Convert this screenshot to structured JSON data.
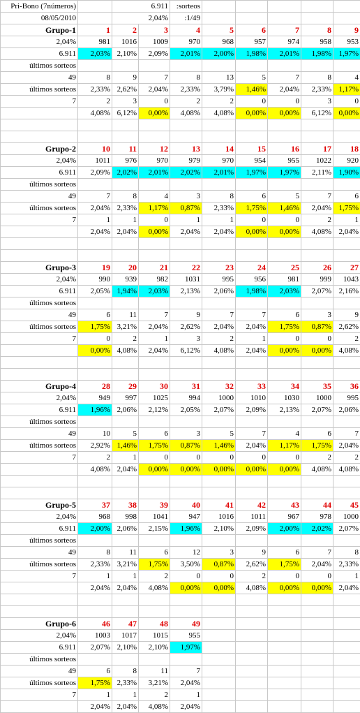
{
  "header": {
    "title": "Pri-Bono (7números)",
    "date": "08/05/2010",
    "sorteos_value": "6.911",
    "sorteos_label": ":sorteos",
    "prob_value": "2,04%",
    "prob_label": ":1/49"
  },
  "colors": {
    "cyan": "#00ffff",
    "yellow": "#ffff00",
    "number_red": "#e00000"
  },
  "groups": [
    {
      "name": "Grupo-1",
      "prob": "2,04%",
      "sorteos": "6.911",
      "count49": "49",
      "count7": "7",
      "ultimos1": "últimos sorteos",
      "ultimos2": "últimos sorteos",
      "numbers": [
        "1",
        "2",
        "3",
        "4",
        "5",
        "6",
        "7",
        "8",
        "9"
      ],
      "freq": [
        "981",
        "1016",
        "1009",
        "970",
        "968",
        "957",
        "974",
        "958",
        "953"
      ],
      "pct": [
        "2,03%",
        "2,10%",
        "2,09%",
        "2,01%",
        "2,00%",
        "1,98%",
        "2,01%",
        "1,98%",
        "1,97%"
      ],
      "pct_hl": [
        "cyan",
        "",
        "",
        "cyan",
        "cyan",
        "cyan",
        "cyan",
        "cyan",
        "cyan"
      ],
      "last49": [
        "8",
        "9",
        "7",
        "8",
        "13",
        "5",
        "7",
        "8",
        "4"
      ],
      "last49pct": [
        "2,33%",
        "2,62%",
        "2,04%",
        "2,33%",
        "3,79%",
        "1,46%",
        "2,04%",
        "2,33%",
        "1,17%"
      ],
      "last49_hl": [
        "",
        "",
        "",
        "",
        "",
        "yellow",
        "",
        "",
        "yellow"
      ],
      "last7": [
        "2",
        "3",
        "0",
        "2",
        "2",
        "0",
        "0",
        "3",
        "0"
      ],
      "last7pct": [
        "4,08%",
        "6,12%",
        "0,00%",
        "4,08%",
        "4,08%",
        "0,00%",
        "0,00%",
        "6,12%",
        "0,00%"
      ],
      "last7_hl": [
        "",
        "",
        "yellow",
        "",
        "",
        "yellow",
        "yellow",
        "",
        "yellow"
      ]
    },
    {
      "name": "Grupo-2",
      "prob": "2,04%",
      "sorteos": "6.911",
      "count49": "49",
      "count7": "7",
      "ultimos1": "últimos sorteos",
      "ultimos2": "últimos sorteos",
      "numbers": [
        "10",
        "11",
        "12",
        "13",
        "14",
        "15",
        "16",
        "17",
        "18"
      ],
      "freq": [
        "1011",
        "976",
        "970",
        "979",
        "970",
        "954",
        "955",
        "1022",
        "920"
      ],
      "pct": [
        "2,09%",
        "2,02%",
        "2,01%",
        "2,02%",
        "2,01%",
        "1,97%",
        "1,97%",
        "2,11%",
        "1,90%"
      ],
      "pct_hl": [
        "",
        "cyan",
        "cyan",
        "cyan",
        "cyan",
        "cyan",
        "cyan",
        "",
        "cyan"
      ],
      "last49": [
        "7",
        "8",
        "4",
        "3",
        "8",
        "6",
        "5",
        "7",
        "6"
      ],
      "last49pct": [
        "2,04%",
        "2,33%",
        "1,17%",
        "0,87%",
        "2,33%",
        "1,75%",
        "1,46%",
        "2,04%",
        "1,75%"
      ],
      "last49_hl": [
        "",
        "",
        "yellow",
        "yellow",
        "",
        "yellow",
        "yellow",
        "",
        "yellow"
      ],
      "last7": [
        "1",
        "1",
        "0",
        "1",
        "1",
        "0",
        "0",
        "2",
        "1"
      ],
      "last7pct": [
        "2,04%",
        "2,04%",
        "0,00%",
        "2,04%",
        "2,04%",
        "0,00%",
        "0,00%",
        "4,08%",
        "2,04%"
      ],
      "last7_hl": [
        "",
        "",
        "yellow",
        "",
        "",
        "yellow",
        "yellow",
        "",
        ""
      ]
    },
    {
      "name": "Grupo-3",
      "prob": "2,04%",
      "sorteos": "6.911",
      "count49": "49",
      "count7": "7",
      "ultimos1": "últimos sorteos",
      "ultimos2": "últimos sorteos",
      "numbers": [
        "19",
        "20",
        "21",
        "22",
        "23",
        "24",
        "25",
        "26",
        "27"
      ],
      "freq": [
        "990",
        "939",
        "982",
        "1031",
        "995",
        "956",
        "981",
        "999",
        "1043"
      ],
      "pct": [
        "2,05%",
        "1,94%",
        "2,03%",
        "2,13%",
        "2,06%",
        "1,98%",
        "2,03%",
        "2,07%",
        "2,16%"
      ],
      "pct_hl": [
        "",
        "cyan",
        "cyan",
        "",
        "",
        "cyan",
        "cyan",
        "",
        ""
      ],
      "last49": [
        "6",
        "11",
        "7",
        "9",
        "7",
        "7",
        "6",
        "3",
        "9"
      ],
      "last49pct": [
        "1,75%",
        "3,21%",
        "2,04%",
        "2,62%",
        "2,04%",
        "2,04%",
        "1,75%",
        "0,87%",
        "2,62%"
      ],
      "last49_hl": [
        "yellow",
        "",
        "",
        "",
        "",
        "",
        "yellow",
        "yellow",
        ""
      ],
      "last7": [
        "0",
        "2",
        "1",
        "3",
        "2",
        "1",
        "0",
        "0",
        "2"
      ],
      "last7pct": [
        "0,00%",
        "4,08%",
        "2,04%",
        "6,12%",
        "4,08%",
        "2,04%",
        "0,00%",
        "0,00%",
        "4,08%"
      ],
      "last7_hl": [
        "yellow",
        "",
        "",
        "",
        "",
        "",
        "yellow",
        "yellow",
        ""
      ]
    },
    {
      "name": "Grupo-4",
      "prob": "2,04%",
      "sorteos": "6.911",
      "count49": "49",
      "count7": "7",
      "ultimos1": "últimos sorteos",
      "ultimos2": "últimos sorteos",
      "numbers": [
        "28",
        "29",
        "30",
        "31",
        "32",
        "33",
        "34",
        "35",
        "36"
      ],
      "freq": [
        "949",
        "997",
        "1025",
        "994",
        "1000",
        "1010",
        "1030",
        "1000",
        "995"
      ],
      "pct": [
        "1,96%",
        "2,06%",
        "2,12%",
        "2,05%",
        "2,07%",
        "2,09%",
        "2,13%",
        "2,07%",
        "2,06%"
      ],
      "pct_hl": [
        "cyan",
        "",
        "",
        "",
        "",
        "",
        "",
        "",
        ""
      ],
      "last49": [
        "10",
        "5",
        "6",
        "3",
        "5",
        "7",
        "4",
        "6",
        "7"
      ],
      "last49pct": [
        "2,92%",
        "1,46%",
        "1,75%",
        "0,87%",
        "1,46%",
        "2,04%",
        "1,17%",
        "1,75%",
        "2,04%"
      ],
      "last49_hl": [
        "",
        "yellow",
        "yellow",
        "yellow",
        "yellow",
        "",
        "yellow",
        "yellow",
        ""
      ],
      "last7": [
        "2",
        "1",
        "0",
        "0",
        "0",
        "0",
        "0",
        "2",
        "2"
      ],
      "last7pct": [
        "4,08%",
        "2,04%",
        "0,00%",
        "0,00%",
        "0,00%",
        "0,00%",
        "0,00%",
        "4,08%",
        "4,08%"
      ],
      "last7_hl": [
        "",
        "",
        "yellow",
        "yellow",
        "yellow",
        "yellow",
        "yellow",
        "",
        ""
      ]
    },
    {
      "name": "Grupo-5",
      "prob": "2,04%",
      "sorteos": "6.911",
      "count49": "49",
      "count7": "7",
      "ultimos1": "últimos sorteos",
      "ultimos2": "últimos sorteos",
      "numbers": [
        "37",
        "38",
        "39",
        "40",
        "41",
        "42",
        "43",
        "44",
        "45"
      ],
      "freq": [
        "968",
        "998",
        "1041",
        "947",
        "1016",
        "1011",
        "967",
        "978",
        "1000"
      ],
      "pct": [
        "2,00%",
        "2,06%",
        "2,15%",
        "1,96%",
        "2,10%",
        "2,09%",
        "2,00%",
        "2,02%",
        "2,07%"
      ],
      "pct_hl": [
        "cyan",
        "",
        "",
        "cyan",
        "",
        "",
        "cyan",
        "cyan",
        ""
      ],
      "last49": [
        "8",
        "11",
        "6",
        "12",
        "3",
        "9",
        "6",
        "7",
        "8"
      ],
      "last49pct": [
        "2,33%",
        "3,21%",
        "1,75%",
        "3,50%",
        "0,87%",
        "2,62%",
        "1,75%",
        "2,04%",
        "2,33%"
      ],
      "last49_hl": [
        "",
        "",
        "yellow",
        "",
        "yellow",
        "",
        "yellow",
        "",
        ""
      ],
      "last7": [
        "1",
        "1",
        "2",
        "0",
        "0",
        "2",
        "0",
        "0",
        "1"
      ],
      "last7pct": [
        "2,04%",
        "2,04%",
        "4,08%",
        "0,00%",
        "0,00%",
        "4,08%",
        "0,00%",
        "0,00%",
        "2,04%"
      ],
      "last7_hl": [
        "",
        "",
        "",
        "yellow",
        "yellow",
        "",
        "yellow",
        "yellow",
        ""
      ]
    },
    {
      "name": "Grupo-6",
      "prob": "2,04%",
      "sorteos": "6.911",
      "count49": "49",
      "count7": "7",
      "ultimos1": "últimos sorteos",
      "ultimos2": "últimos sorteos",
      "numbers": [
        "46",
        "47",
        "48",
        "49",
        "",
        "",
        "",
        "",
        ""
      ],
      "freq": [
        "1003",
        "1017",
        "1015",
        "955",
        "",
        "",
        "",
        "",
        ""
      ],
      "pct": [
        "2,07%",
        "2,10%",
        "2,10%",
        "1,97%",
        "",
        "",
        "",
        "",
        ""
      ],
      "pct_hl": [
        "",
        "",
        "",
        "cyan",
        "",
        "",
        "",
        "",
        ""
      ],
      "last49": [
        "6",
        "8",
        "11",
        "7",
        "",
        "",
        "",
        "",
        ""
      ],
      "last49pct": [
        "1,75%",
        "2,33%",
        "3,21%",
        "2,04%",
        "",
        "",
        "",
        "",
        ""
      ],
      "last49_hl": [
        "yellow",
        "",
        "",
        "",
        "",
        "",
        "",
        "",
        ""
      ],
      "last7": [
        "1",
        "1",
        "2",
        "1",
        "",
        "",
        "",
        "",
        ""
      ],
      "last7pct": [
        "2,04%",
        "2,04%",
        "4,08%",
        "2,04%",
        "",
        "",
        "",
        "",
        ""
      ],
      "last7_hl": [
        "",
        "",
        "",
        "",
        "",
        "",
        "",
        "",
        ""
      ]
    }
  ]
}
